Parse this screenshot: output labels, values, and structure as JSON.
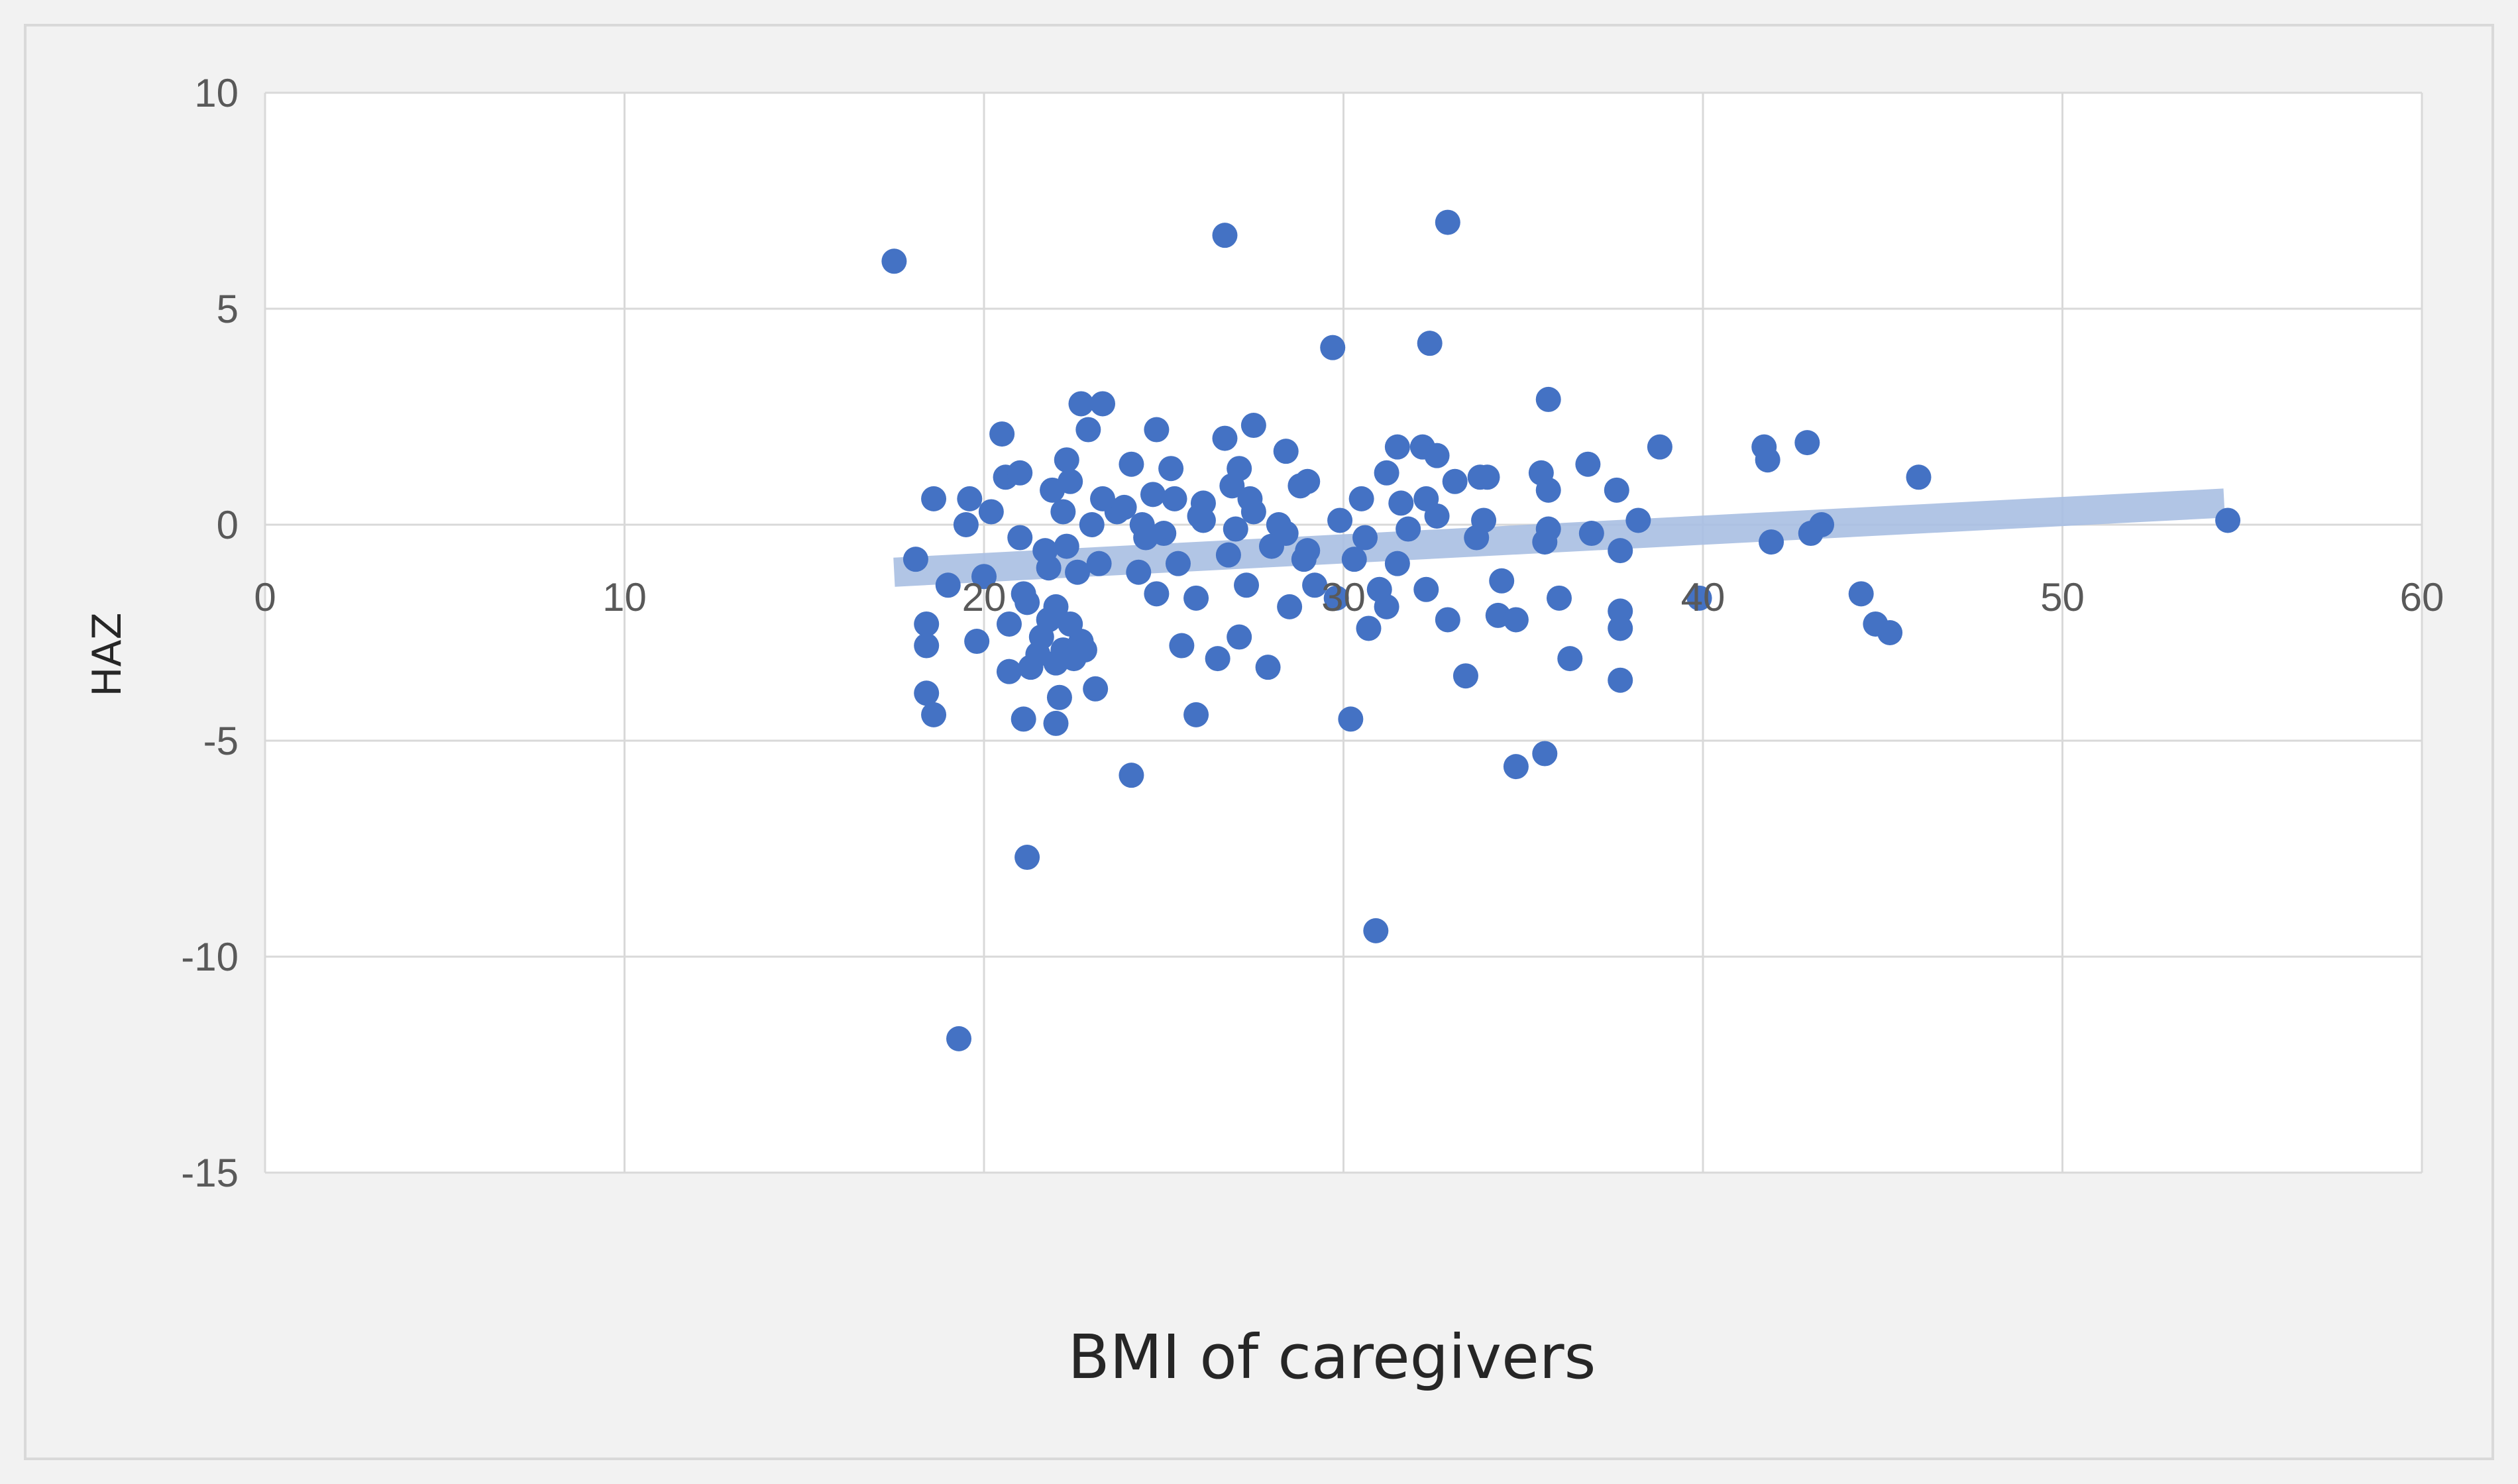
{
  "chart_data": {
    "type": "scatter",
    "xlabel": "BMI of caregivers",
    "ylabel": "HAZ",
    "xlim": [
      0,
      60
    ],
    "ylim": [
      -15,
      10
    ],
    "x_ticks": [
      0,
      10,
      20,
      30,
      40,
      50,
      60
    ],
    "y_ticks": [
      -15,
      -10,
      -5,
      0,
      5,
      10
    ],
    "grid": true,
    "legend": "none",
    "colors": {
      "marker": "#4472c4",
      "trendline": "#a9bfe3",
      "grid": "#d9d9d9",
      "plot_background": "#ffffff",
      "chart_background": "#f2f2f2"
    },
    "trendline": {
      "type": "linear",
      "x": [
        17.5,
        54.5
      ],
      "y": [
        -1.1,
        0.5
      ]
    },
    "points": [
      [
        17.5,
        6.1
      ],
      [
        26.7,
        6.7
      ],
      [
        32.9,
        7.0
      ],
      [
        29.7,
        4.1
      ],
      [
        32.4,
        4.2
      ],
      [
        35.7,
        2.9
      ],
      [
        19.3,
        -11.9
      ],
      [
        30.9,
        -9.4
      ],
      [
        21.2,
        -7.7
      ],
      [
        24.1,
        -5.8
      ],
      [
        34.8,
        -5.6
      ],
      [
        35.6,
        -5.3
      ],
      [
        30.2,
        -4.5
      ],
      [
        21.1,
        -4.5
      ],
      [
        25.9,
        -4.4
      ],
      [
        22.0,
        -4.6
      ],
      [
        18.6,
        -4.4
      ],
      [
        18.4,
        -3.9
      ],
      [
        22.1,
        -4.0
      ],
      [
        23.1,
        -3.8
      ],
      [
        33.4,
        -3.5
      ],
      [
        37.7,
        -3.6
      ],
      [
        36.3,
        -3.1
      ],
      [
        26.5,
        -3.1
      ],
      [
        27.9,
        -3.3
      ],
      [
        25.5,
        -2.8
      ],
      [
        20.7,
        -3.4
      ],
      [
        21.3,
        -3.3
      ],
      [
        21.6,
        -2.6
      ],
      [
        22.2,
        -2.9
      ],
      [
        22.5,
        -3.1
      ],
      [
        22.7,
        -2.7
      ],
      [
        21.8,
        -2.2
      ],
      [
        22.0,
        -1.9
      ],
      [
        22.4,
        -2.3
      ],
      [
        19.8,
        -2.7
      ],
      [
        18.4,
        -2.8
      ],
      [
        18.4,
        -2.3
      ],
      [
        20.7,
        -2.3
      ],
      [
        21.2,
        -1.8
      ],
      [
        27.1,
        -2.6
      ],
      [
        28.5,
        -1.9
      ],
      [
        30.7,
        -2.4
      ],
      [
        32.9,
        -2.2
      ],
      [
        34.3,
        -2.1
      ],
      [
        34.8,
        -2.2
      ],
      [
        37.7,
        -2.4
      ],
      [
        37.7,
        -2.0
      ],
      [
        39.9,
        -1.7
      ],
      [
        44.4,
        -1.6
      ],
      [
        44.8,
        -2.3
      ],
      [
        45.2,
        -2.5
      ],
      [
        25.9,
        -1.7
      ],
      [
        24.8,
        -1.6
      ],
      [
        27.3,
        -1.4
      ],
      [
        29.2,
        -1.4
      ],
      [
        29.8,
        -1.7
      ],
      [
        31.2,
        -1.9
      ],
      [
        31.0,
        -1.5
      ],
      [
        32.3,
        -1.5
      ],
      [
        34.4,
        -1.3
      ],
      [
        36.0,
        -1.7
      ],
      [
        19.0,
        -1.4
      ],
      [
        20.0,
        -1.2
      ],
      [
        21.8,
        -1.0
      ],
      [
        22.6,
        -1.1
      ],
      [
        23.2,
        -0.9
      ],
      [
        24.3,
        -1.1
      ],
      [
        25.4,
        -0.9
      ],
      [
        26.8,
        -0.7
      ],
      [
        28.0,
        -0.5
      ],
      [
        29.0,
        -0.6
      ],
      [
        30.3,
        -0.8
      ],
      [
        31.5,
        -0.9
      ],
      [
        33.7,
        -0.3
      ],
      [
        35.6,
        -0.4
      ],
      [
        37.7,
        -0.6
      ],
      [
        18.1,
        -0.8
      ],
      [
        21.0,
        -0.3
      ],
      [
        22.3,
        -0.5
      ],
      [
        23.7,
        0.3
      ],
      [
        24.4,
        0.0
      ],
      [
        25.0,
        -0.2
      ],
      [
        26.1,
        0.1
      ],
      [
        27.0,
        -0.1
      ],
      [
        27.5,
        0.3
      ],
      [
        28.4,
        -0.2
      ],
      [
        29.9,
        0.1
      ],
      [
        30.6,
        -0.3
      ],
      [
        31.8,
        -0.1
      ],
      [
        32.6,
        0.2
      ],
      [
        33.9,
        0.1
      ],
      [
        35.7,
        -0.1
      ],
      [
        36.9,
        -0.2
      ],
      [
        38.2,
        0.1
      ],
      [
        41.9,
        -0.4
      ],
      [
        43.0,
        -0.2
      ],
      [
        43.3,
        0.0
      ],
      [
        54.6,
        0.1
      ],
      [
        19.5,
        0.0
      ],
      [
        19.6,
        0.6
      ],
      [
        18.6,
        0.6
      ],
      [
        20.2,
        0.3
      ],
      [
        20.6,
        1.1
      ],
      [
        21.0,
        1.2
      ],
      [
        21.9,
        0.8
      ],
      [
        22.4,
        1.0
      ],
      [
        22.2,
        0.3
      ],
      [
        23.3,
        0.6
      ],
      [
        23.9,
        0.4
      ],
      [
        24.7,
        0.7
      ],
      [
        25.3,
        0.6
      ],
      [
        26.1,
        0.5
      ],
      [
        26.9,
        0.9
      ],
      [
        27.4,
        0.6
      ],
      [
        28.8,
        0.9
      ],
      [
        30.5,
        0.6
      ],
      [
        31.6,
        0.5
      ],
      [
        32.3,
        0.6
      ],
      [
        33.1,
        1.0
      ],
      [
        34.0,
        1.1
      ],
      [
        35.5,
        1.2
      ],
      [
        35.7,
        0.8
      ],
      [
        36.8,
        1.4
      ],
      [
        37.6,
        0.8
      ],
      [
        20.5,
        2.1
      ],
      [
        22.3,
        1.5
      ],
      [
        22.9,
        2.2
      ],
      [
        22.7,
        2.8
      ],
      [
        23.3,
        2.8
      ],
      [
        24.1,
        1.4
      ],
      [
        24.8,
        2.2
      ],
      [
        25.2,
        1.3
      ],
      [
        26.7,
        2.0
      ],
      [
        27.5,
        2.3
      ],
      [
        28.4,
        1.7
      ],
      [
        29.0,
        1.0
      ],
      [
        31.5,
        1.8
      ],
      [
        32.2,
        1.8
      ],
      [
        32.6,
        1.6
      ],
      [
        33.8,
        1.1
      ],
      [
        38.8,
        1.8
      ],
      [
        41.7,
        1.8
      ],
      [
        41.8,
        1.5
      ],
      [
        42.9,
        1.9
      ],
      [
        46.0,
        1.1
      ],
      [
        21.1,
        -1.6
      ],
      [
        23.0,
        0.0
      ],
      [
        26.0,
        0.2
      ],
      [
        27.1,
        1.3
      ],
      [
        28.2,
        0.0
      ],
      [
        31.2,
        1.2
      ],
      [
        24.5,
        -0.3
      ],
      [
        22.0,
        -3.2
      ],
      [
        21.5,
        -3.0
      ],
      [
        22.8,
        -2.9
      ],
      [
        21.7,
        -0.6
      ],
      [
        28.9,
        -0.8
      ]
    ]
  }
}
